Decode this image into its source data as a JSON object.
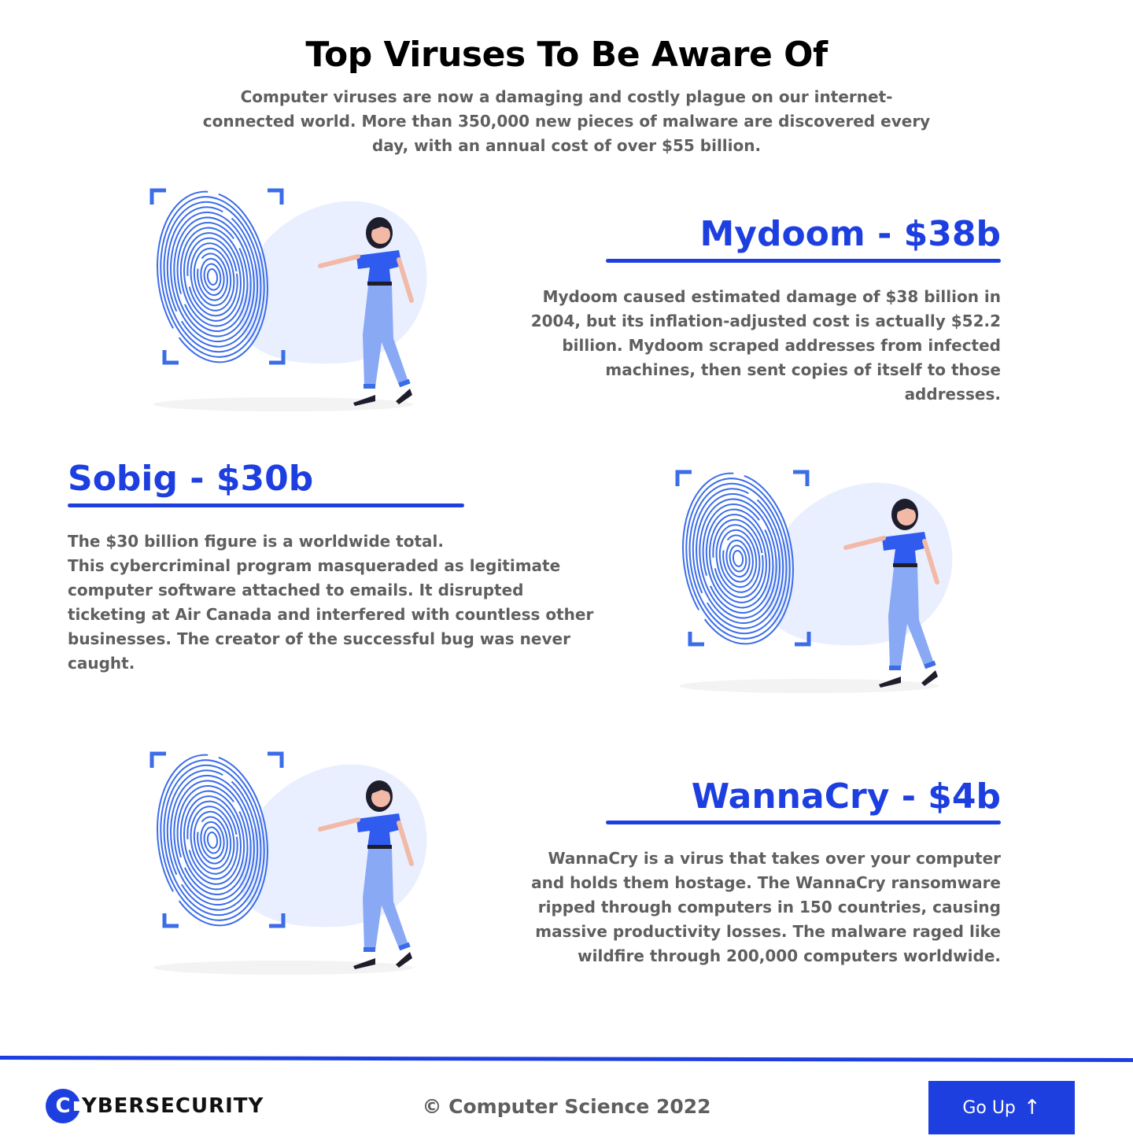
{
  "header": {
    "title": "Top Viruses To Be Aware Of",
    "intro": "Computer viruses are now a damaging and costly plague on our internet-connected world. More than 350,000 new pieces of malware are discovered every day, with an annual cost of over $55 billion."
  },
  "viruses": [
    {
      "heading": "Mydoom - $38b",
      "description": "Mydoom caused estimated damage of $38 billion in 2004, but its inflation-adjusted cost is actually $52.2 billion. Mydoom scraped addresses from infected machines, then sent copies of itself to those addresses."
    },
    {
      "heading": "Sobig - $30b",
      "description_line1": "The $30 billion figure is a worldwide total.",
      "description_line2": "This cybercriminal program masqueraded as legitimate computer software attached to emails. It disrupted ticketing at Air Canada and interfered with countless other businesses. The creator of the successful bug was never caught."
    },
    {
      "heading": "WannaCry - $4b",
      "description": "WannaCry  is a virus that takes over your computer and holds them hostage. The WannaCry ransomware ripped through computers in 150 countries, causing massive productivity losses. The malware raged like wildfire through 200,000 computers worldwide."
    }
  ],
  "footer": {
    "logo_letter": "C",
    "logo_text": "YBERSECURITY",
    "copyright": "© Computer Science 2022",
    "go_up_label": "Go Up",
    "go_up_icon": "arrow-up-icon"
  },
  "colors": {
    "accent": "#1e3fe0",
    "text": "#5f5f5f",
    "illustration_blob": "#e9efff",
    "fingerprint": "#3b6de8",
    "pants": "#8aa9f5"
  }
}
